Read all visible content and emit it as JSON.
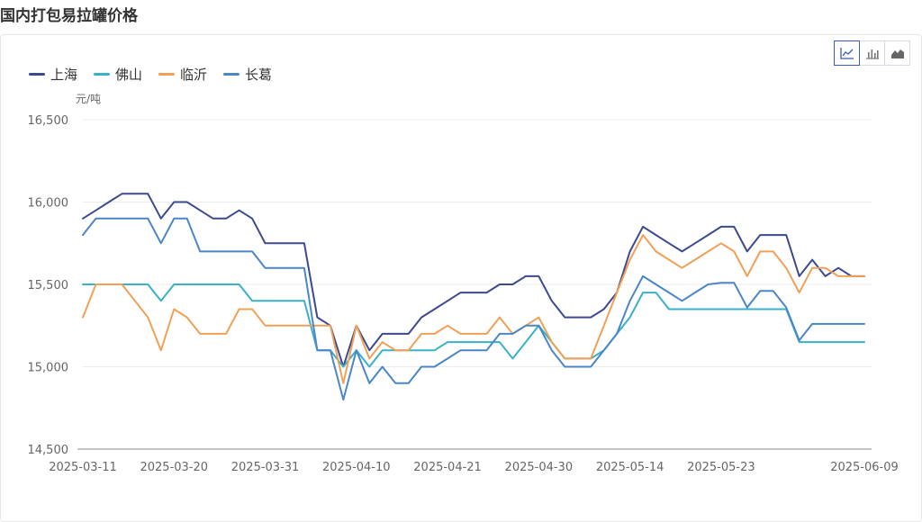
{
  "page_title": "国内打包易拉罐价格",
  "toolbar": {
    "buttons": [
      {
        "icon": "line-chart-icon",
        "active": true
      },
      {
        "icon": "bar-chart-icon",
        "active": false
      },
      {
        "icon": "area-chart-icon",
        "active": false
      }
    ]
  },
  "chart_data": {
    "type": "line",
    "ylabel": "元/吨",
    "ylim": [
      14500,
      16500
    ],
    "yticks": [
      14500,
      15000,
      15500,
      16000,
      16500
    ],
    "ytick_labels": [
      "14,500",
      "15,000",
      "15,500",
      "16,000",
      "16,500"
    ],
    "x_tick_labels": [
      "2025-03-11",
      "2025-03-20",
      "2025-03-31",
      "2025-04-10",
      "2025-04-21",
      "2025-04-30",
      "2025-05-14",
      "2025-05-23",
      "2025-06-09"
    ],
    "x_tick_index": [
      0,
      7,
      14,
      21,
      28,
      35,
      42,
      49,
      60
    ],
    "n_points": 61,
    "grid": true,
    "legend": "top-left",
    "series": [
      {
        "name": "上海",
        "color": "#3d4a8f",
        "values": [
          15900,
          15950,
          16000,
          16050,
          16050,
          16050,
          15900,
          16000,
          16000,
          15950,
          15900,
          15900,
          15950,
          15900,
          15750,
          15750,
          15750,
          15750,
          15300,
          15250,
          15000,
          15250,
          15100,
          15200,
          15200,
          15200,
          15300,
          15350,
          15400,
          15450,
          15450,
          15450,
          15500,
          15500,
          15550,
          15550,
          15400,
          15300,
          15300,
          15300,
          15350,
          15450,
          15700,
          15850,
          15800,
          15750,
          15700,
          15750,
          15800,
          15850,
          15850,
          15700,
          15800,
          15800,
          15800,
          15550,
          15650,
          15550,
          15600,
          15550,
          15550
        ]
      },
      {
        "name": "佛山",
        "color": "#3ab0c9",
        "values": [
          15500,
          15500,
          15500,
          15500,
          15500,
          15500,
          15400,
          15500,
          15500,
          15500,
          15500,
          15500,
          15500,
          15400,
          15400,
          15400,
          15400,
          15400,
          15100,
          15100,
          15000,
          15100,
          15000,
          15100,
          15100,
          15100,
          15100,
          15100,
          15150,
          15150,
          15150,
          15150,
          15150,
          15050,
          15150,
          15250,
          15150,
          15050,
          15050,
          15050,
          15100,
          15200,
          15300,
          15450,
          15450,
          15350,
          15350,
          15350,
          15350,
          15350,
          15350,
          15350,
          15350,
          15350,
          15350,
          15150,
          15150,
          15150,
          15150,
          15150,
          15150
        ]
      },
      {
        "name": "临沂",
        "color": "#f0a057",
        "values": [
          15300,
          15500,
          15500,
          15500,
          15400,
          15300,
          15100,
          15350,
          15300,
          15200,
          15200,
          15200,
          15350,
          15350,
          15250,
          15250,
          15250,
          15250,
          15250,
          15250,
          14900,
          15250,
          15050,
          15150,
          15100,
          15100,
          15200,
          15200,
          15250,
          15200,
          15200,
          15200,
          15300,
          15200,
          15250,
          15300,
          15150,
          15050,
          15050,
          15050,
          15250,
          15450,
          15650,
          15800,
          15700,
          15650,
          15600,
          15650,
          15700,
          15750,
          15700,
          15550,
          15700,
          15700,
          15600,
          15450,
          15600,
          15600,
          15550,
          15550,
          15550
        ]
      },
      {
        "name": "长葛",
        "color": "#4a86c8",
        "values": [
          15800,
          15900,
          15900,
          15900,
          15900,
          15900,
          15750,
          15900,
          15900,
          15700,
          15700,
          15700,
          15700,
          15700,
          15600,
          15600,
          15600,
          15600,
          15100,
          15100,
          14800,
          15100,
          14900,
          15000,
          14900,
          14900,
          15000,
          15000,
          15050,
          15100,
          15100,
          15100,
          15200,
          15200,
          15250,
          15250,
          15100,
          15000,
          15000,
          15000,
          15100,
          15200,
          15400,
          15550,
          15500,
          15450,
          15400,
          15450,
          15500,
          15510,
          15510,
          15360,
          15460,
          15460,
          15360,
          15160,
          15260,
          15260,
          15260,
          15260,
          15260
        ]
      }
    ]
  }
}
